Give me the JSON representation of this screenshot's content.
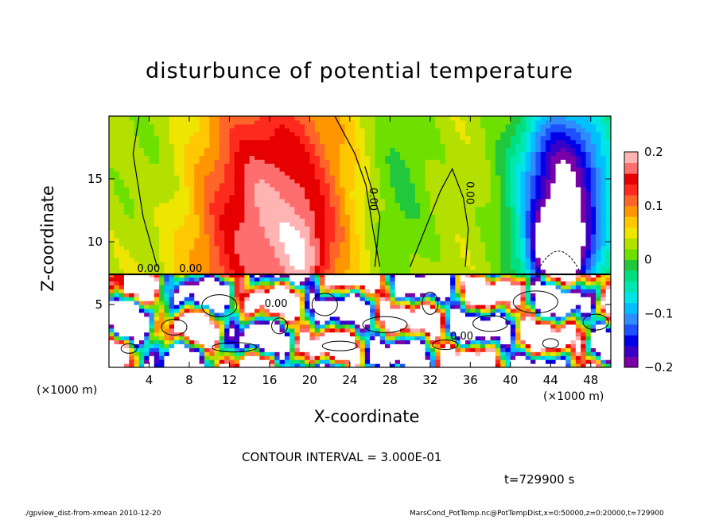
{
  "chart_data": {
    "type": "heatmap",
    "title": "disturbunce of potential temperature",
    "xlabel": "X-coordinate",
    "ylabel": "Z-coordinate",
    "x_unit_label": "(×1000 m)",
    "x_range": [
      0,
      50
    ],
    "y_range": [
      0,
      20
    ],
    "x_ticks": [
      "4",
      "8",
      "12",
      "16",
      "20",
      "24",
      "28",
      "32",
      "36",
      "40",
      "44",
      "48"
    ],
    "x_tick_values": [
      4,
      8,
      12,
      16,
      20,
      24,
      28,
      32,
      36,
      40,
      44,
      48
    ],
    "y_ticks": [
      "5",
      "10",
      "15"
    ],
    "y_tick_values": [
      5,
      10,
      15
    ],
    "colorbar": {
      "range": [
        -0.2,
        0.2
      ],
      "labels": [
        "0.2",
        "0.1",
        "0",
        "−0.1",
        "−0.2"
      ],
      "label_values": [
        0.2,
        0.1,
        0,
        -0.1,
        -0.2
      ],
      "colors": [
        "#7a00a8",
        "#3a00c8",
        "#0000e8",
        "#1e50ff",
        "#2f8cff",
        "#00bfff",
        "#00e5e5",
        "#00e8b0",
        "#00e080",
        "#22c83c",
        "#6ee000",
        "#b4e000",
        "#eee600",
        "#ffc800",
        "#ff9600",
        "#ff6428",
        "#ff2a1e",
        "#e60000",
        "#ff6e6e",
        "#ffb4b4"
      ]
    },
    "contour_labels": [
      "0.00",
      "0.00",
      "0.00",
      "0.00",
      "0.00",
      "0.00"
    ]
  },
  "annotations": {
    "contour_interval": "CONTOUR INTERVAL = 3.000E-01",
    "time": "t=729900 s"
  },
  "footer": {
    "left": "./gpview_dist-from-xmean  2010-12-20",
    "right": "MarsCond_PotTemp.nc@PotTempDist,x=0:50000,z=0:20000,t=729900"
  }
}
